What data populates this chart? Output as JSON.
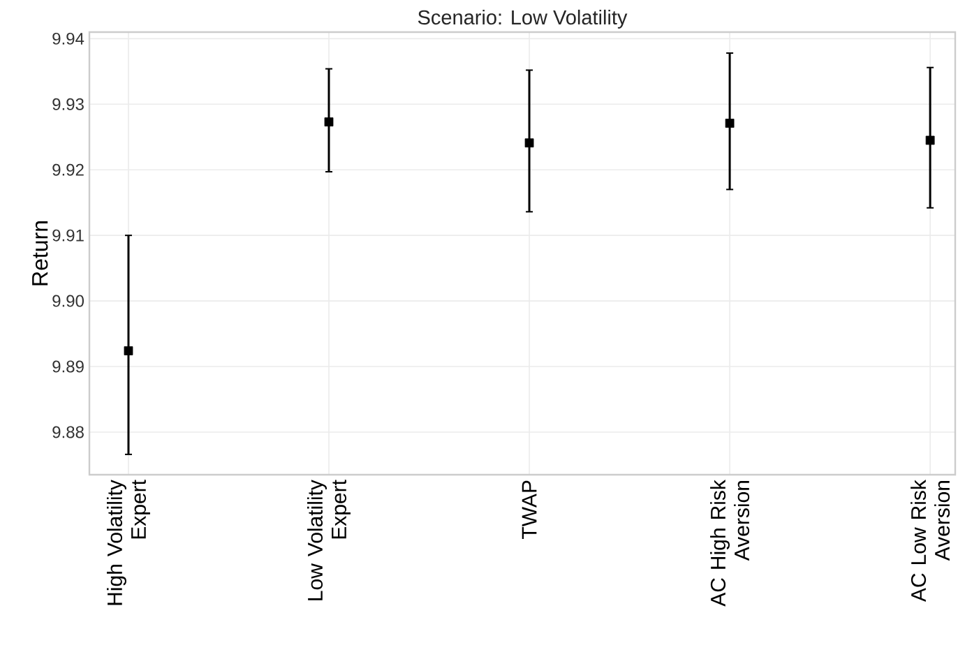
{
  "chart_data": {
    "type": "scatter",
    "title": "Scenario: Low Volatility",
    "ylabel": "Return",
    "categories": [
      "High Volatility Expert",
      "Low Volatility Expert",
      "TWAP",
      "AC High Risk Aversion",
      "AC Low Risk Aversion"
    ],
    "values": [
      9.8924,
      9.9273,
      9.9241,
      9.9271,
      9.9245
    ],
    "errors": [
      [
        9.8766,
        9.91
      ],
      [
        9.9197,
        9.9354
      ],
      [
        9.9136,
        9.9352
      ],
      [
        9.917,
        9.9378
      ],
      [
        9.9142,
        9.9356
      ]
    ],
    "color": "#000000",
    "marker": "square",
    "ylim": [
      9.8735,
      9.941
    ],
    "yticks": [
      9.88,
      9.89,
      {
        "value": 9.9,
        "label": "9.90"
      },
      9.91,
      9.92,
      9.93,
      9.94
    ],
    "grid": true
  }
}
